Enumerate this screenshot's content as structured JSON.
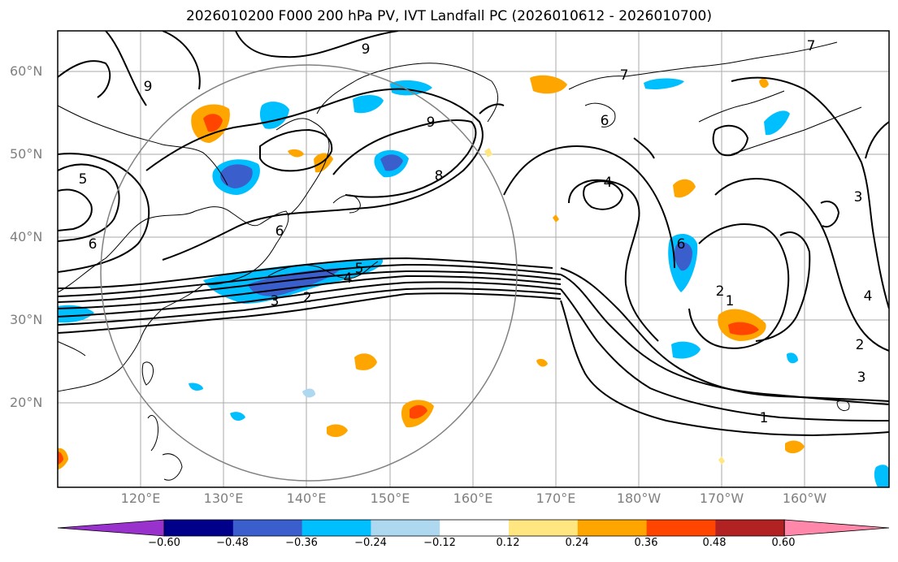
{
  "title": "2026010200 F000 200 hPa PV, IVT Landfall PC (2026010612 - 2026010700)",
  "lat_labels": [
    "60°N",
    "50°N",
    "40°N",
    "30°N",
    "20°N"
  ],
  "lon_labels": [
    "120°E",
    "130°E",
    "140°E",
    "150°E",
    "160°E",
    "170°E",
    "180°W",
    "170°W",
    "160°W"
  ],
  "colorbar": {
    "ticks": [
      "−0.60",
      "−0.48",
      "−0.36",
      "−0.24",
      "−0.12",
      "0.12",
      "0.24",
      "0.36",
      "0.48",
      "0.60"
    ],
    "colors": [
      "#9932cc",
      "#00008b",
      "#3a5fcd",
      "#00bfff",
      "#add8f0",
      "#ffffff",
      "#ffe680",
      "#ffa500",
      "#ff4500",
      "#b22222",
      "#ff88aa"
    ]
  },
  "contour_labels": [
    "9",
    "9",
    "9",
    "8",
    "7",
    "7",
    "6",
    "6",
    "5",
    "5",
    "4",
    "4",
    "3",
    "3",
    "2",
    "2",
    "1",
    "1",
    "6",
    "6",
    "4",
    "3",
    "2"
  ]
}
